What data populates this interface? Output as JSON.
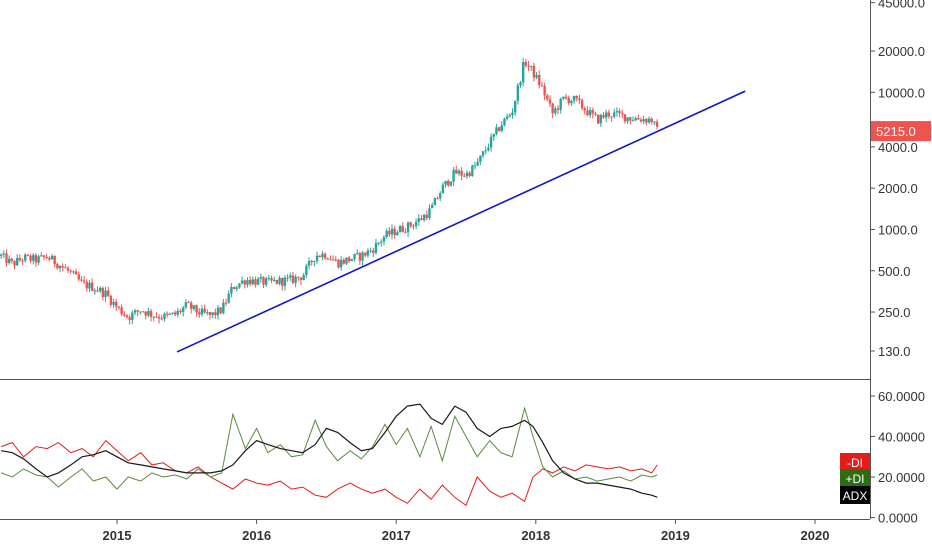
{
  "chart_data": [
    {
      "type": "candlestick",
      "yscale": "log",
      "ylim": [
        100,
        45000
      ],
      "ytick_labels": [
        "45000.0",
        "20000.0",
        "10000.0",
        "4000.0",
        "2000.0",
        "1000.0",
        "500.0",
        "250.0",
        "130.0"
      ],
      "yticks": [
        45000,
        20000,
        10000,
        4000,
        2000,
        1000,
        500,
        250,
        130
      ],
      "xlim": [
        2014.17,
        2020.4
      ],
      "price_path": [
        [
          2014.17,
          640
        ],
        [
          2014.25,
          560
        ],
        [
          2014.33,
          620
        ],
        [
          2014.42,
          600
        ],
        [
          2014.5,
          630
        ],
        [
          2014.58,
          560
        ],
        [
          2014.67,
          480
        ],
        [
          2014.75,
          400
        ],
        [
          2014.83,
          380
        ],
        [
          2014.92,
          340
        ],
        [
          2015.0,
          270
        ],
        [
          2015.08,
          230
        ],
        [
          2015.17,
          260
        ],
        [
          2015.25,
          240
        ],
        [
          2015.33,
          230
        ],
        [
          2015.42,
          240
        ],
        [
          2015.5,
          280
        ],
        [
          2015.58,
          250
        ],
        [
          2015.67,
          235
        ],
        [
          2015.75,
          260
        ],
        [
          2015.83,
          380
        ],
        [
          2015.92,
          430
        ],
        [
          2016.0,
          420
        ],
        [
          2016.08,
          410
        ],
        [
          2016.17,
          420
        ],
        [
          2016.25,
          430
        ],
        [
          2016.33,
          460
        ],
        [
          2016.42,
          650
        ],
        [
          2016.5,
          660
        ],
        [
          2016.58,
          570
        ],
        [
          2016.67,
          610
        ],
        [
          2016.75,
          640
        ],
        [
          2016.83,
          720
        ],
        [
          2016.92,
          900
        ],
        [
          2017.0,
          980
        ],
        [
          2017.08,
          1050
        ],
        [
          2017.17,
          1180
        ],
        [
          2017.25,
          1400
        ],
        [
          2017.33,
          2000
        ],
        [
          2017.42,
          2600
        ],
        [
          2017.5,
          2500
        ],
        [
          2017.58,
          3000
        ],
        [
          2017.67,
          4300
        ],
        [
          2017.75,
          5800
        ],
        [
          2017.83,
          7200
        ],
        [
          2017.92,
          17000
        ],
        [
          2017.98,
          14000
        ],
        [
          2018.05,
          10500
        ],
        [
          2018.12,
          7000
        ],
        [
          2018.2,
          9000
        ],
        [
          2018.28,
          8800
        ],
        [
          2018.36,
          7400
        ],
        [
          2018.44,
          6300
        ],
        [
          2018.52,
          7000
        ],
        [
          2018.6,
          6800
        ],
        [
          2018.68,
          6500
        ],
        [
          2018.76,
          6400
        ],
        [
          2018.83,
          6300
        ],
        [
          2018.87,
          5215
        ]
      ],
      "last_price_label": "5215.0",
      "trendline": [
        [
          2015.43,
          128
        ],
        [
          2019.5,
          10200
        ]
      ],
      "colors": {
        "up": "#26a69a",
        "down": "#ef5350",
        "trendline": "#0d16c8",
        "price_tag": "#ef5350"
      }
    },
    {
      "type": "line",
      "indicator": "DMI",
      "ylim": [
        0,
        65
      ],
      "ytick_labels": [
        "60.0000",
        "40.0000",
        "20.0000",
        "0.0000"
      ],
      "yticks": [
        60,
        40,
        20,
        0
      ],
      "series": [
        {
          "name": "-DI",
          "color": "#e31c1c",
          "points": [
            [
              2014.17,
              35
            ],
            [
              2014.25,
              37
            ],
            [
              2014.33,
              30
            ],
            [
              2014.42,
              35
            ],
            [
              2014.5,
              34
            ],
            [
              2014.58,
              37
            ],
            [
              2014.67,
              32
            ],
            [
              2014.75,
              34
            ],
            [
              2014.83,
              30
            ],
            [
              2014.92,
              38
            ],
            [
              2015.0,
              33
            ],
            [
              2015.08,
              28
            ],
            [
              2015.17,
              32
            ],
            [
              2015.25,
              26
            ],
            [
              2015.33,
              27
            ],
            [
              2015.42,
              23
            ],
            [
              2015.5,
              22
            ],
            [
              2015.58,
              25
            ],
            [
              2015.67,
              20
            ],
            [
              2015.75,
              17
            ],
            [
              2015.83,
              14
            ],
            [
              2015.92,
              19
            ],
            [
              2016.0,
              17
            ],
            [
              2016.08,
              16
            ],
            [
              2016.17,
              18
            ],
            [
              2016.25,
              14
            ],
            [
              2016.33,
              15
            ],
            [
              2016.42,
              11
            ],
            [
              2016.5,
              10
            ],
            [
              2016.58,
              14
            ],
            [
              2016.67,
              17
            ],
            [
              2016.75,
              14
            ],
            [
              2016.83,
              12
            ],
            [
              2016.92,
              14
            ],
            [
              2017.0,
              10
            ],
            [
              2017.08,
              7
            ],
            [
              2017.17,
              14
            ],
            [
              2017.25,
              9
            ],
            [
              2017.33,
              16
            ],
            [
              2017.42,
              10
            ],
            [
              2017.5,
              6
            ],
            [
              2017.58,
              20
            ],
            [
              2017.67,
              13
            ],
            [
              2017.75,
              10
            ],
            [
              2017.83,
              12
            ],
            [
              2017.92,
              8
            ],
            [
              2017.98,
              20
            ],
            [
              2018.05,
              24
            ],
            [
              2018.12,
              22
            ],
            [
              2018.2,
              25
            ],
            [
              2018.28,
              23
            ],
            [
              2018.36,
              26
            ],
            [
              2018.44,
              25
            ],
            [
              2018.52,
              24
            ],
            [
              2018.6,
              25
            ],
            [
              2018.68,
              23
            ],
            [
              2018.76,
              24
            ],
            [
              2018.83,
              22
            ],
            [
              2018.87,
              26
            ]
          ]
        },
        {
          "name": "+DI",
          "color": "#5a8a3c",
          "points": [
            [
              2014.17,
              22
            ],
            [
              2014.25,
              20
            ],
            [
              2014.33,
              24
            ],
            [
              2014.42,
              21
            ],
            [
              2014.5,
              20
            ],
            [
              2014.58,
              15
            ],
            [
              2014.67,
              20
            ],
            [
              2014.75,
              24
            ],
            [
              2014.83,
              18
            ],
            [
              2014.92,
              20
            ],
            [
              2015.0,
              14
            ],
            [
              2015.08,
              20
            ],
            [
              2015.17,
              18
            ],
            [
              2015.25,
              22
            ],
            [
              2015.33,
              20
            ],
            [
              2015.42,
              21
            ],
            [
              2015.5,
              19
            ],
            [
              2015.58,
              24
            ],
            [
              2015.67,
              20
            ],
            [
              2015.75,
              22
            ],
            [
              2015.83,
              51
            ],
            [
              2015.92,
              34
            ],
            [
              2016.0,
              44
            ],
            [
              2016.08,
              32
            ],
            [
              2016.17,
              36
            ],
            [
              2016.25,
              30
            ],
            [
              2016.33,
              31
            ],
            [
              2016.42,
              48
            ],
            [
              2016.5,
              35
            ],
            [
              2016.58,
              28
            ],
            [
              2016.67,
              33
            ],
            [
              2016.75,
              29
            ],
            [
              2016.83,
              35
            ],
            [
              2016.92,
              46
            ],
            [
              2017.0,
              36
            ],
            [
              2017.08,
              44
            ],
            [
              2017.17,
              30
            ],
            [
              2017.25,
              45
            ],
            [
              2017.33,
              28
            ],
            [
              2017.42,
              50
            ],
            [
              2017.5,
              40
            ],
            [
              2017.58,
              30
            ],
            [
              2017.67,
              38
            ],
            [
              2017.75,
              32
            ],
            [
              2017.83,
              30
            ],
            [
              2017.92,
              54
            ],
            [
              2017.98,
              40
            ],
            [
              2018.05,
              25
            ],
            [
              2018.12,
              20
            ],
            [
              2018.2,
              23
            ],
            [
              2018.28,
              19
            ],
            [
              2018.36,
              20
            ],
            [
              2018.44,
              18
            ],
            [
              2018.52,
              19
            ],
            [
              2018.6,
              20
            ],
            [
              2018.68,
              18
            ],
            [
              2018.76,
              21
            ],
            [
              2018.83,
              20
            ],
            [
              2018.87,
              21
            ]
          ]
        },
        {
          "name": "ADX",
          "color": "#1a1a1a",
          "points": [
            [
              2014.17,
              33
            ],
            [
              2014.25,
              32
            ],
            [
              2014.33,
              29
            ],
            [
              2014.42,
              24
            ],
            [
              2014.5,
              20
            ],
            [
              2014.58,
              22
            ],
            [
              2014.67,
              26
            ],
            [
              2014.75,
              30
            ],
            [
              2014.83,
              31
            ],
            [
              2014.92,
              33
            ],
            [
              2015.0,
              30
            ],
            [
              2015.08,
              27
            ],
            [
              2015.17,
              26
            ],
            [
              2015.25,
              25
            ],
            [
              2015.33,
              24
            ],
            [
              2015.42,
              23
            ],
            [
              2015.5,
              22
            ],
            [
              2015.58,
              22
            ],
            [
              2015.67,
              22
            ],
            [
              2015.75,
              23
            ],
            [
              2015.83,
              26
            ],
            [
              2015.92,
              33
            ],
            [
              2016.0,
              38
            ],
            [
              2016.08,
              36
            ],
            [
              2016.17,
              34
            ],
            [
              2016.25,
              33
            ],
            [
              2016.33,
              32
            ],
            [
              2016.42,
              36
            ],
            [
              2016.5,
              44
            ],
            [
              2016.58,
              42
            ],
            [
              2016.67,
              37
            ],
            [
              2016.75,
              33
            ],
            [
              2016.83,
              34
            ],
            [
              2016.92,
              42
            ],
            [
              2017.0,
              50
            ],
            [
              2017.08,
              55
            ],
            [
              2017.17,
              56
            ],
            [
              2017.25,
              49
            ],
            [
              2017.33,
              46
            ],
            [
              2017.42,
              55
            ],
            [
              2017.5,
              52
            ],
            [
              2017.58,
              44
            ],
            [
              2017.67,
              40
            ],
            [
              2017.75,
              44
            ],
            [
              2017.83,
              45
            ],
            [
              2017.92,
              48
            ],
            [
              2017.98,
              45
            ],
            [
              2018.05,
              37
            ],
            [
              2018.12,
              28
            ],
            [
              2018.2,
              22
            ],
            [
              2018.28,
              19
            ],
            [
              2018.36,
              17
            ],
            [
              2018.44,
              17
            ],
            [
              2018.52,
              16
            ],
            [
              2018.6,
              15
            ],
            [
              2018.68,
              14
            ],
            [
              2018.76,
              12
            ],
            [
              2018.83,
              11
            ],
            [
              2018.87,
              10
            ]
          ]
        }
      ],
      "legend_tags": [
        {
          "label": "-DI",
          "bg": "#e31c1c"
        },
        {
          "label": "+DI",
          "bg": "#2e6b12"
        },
        {
          "label": "ADX",
          "bg": "#000000"
        }
      ]
    }
  ],
  "x_axis": {
    "ticks": [
      2015,
      2016,
      2017,
      2018,
      2019,
      2020
    ],
    "tick_labels": [
      "2015",
      "2016",
      "2017",
      "2018",
      "2019",
      "2020"
    ]
  }
}
